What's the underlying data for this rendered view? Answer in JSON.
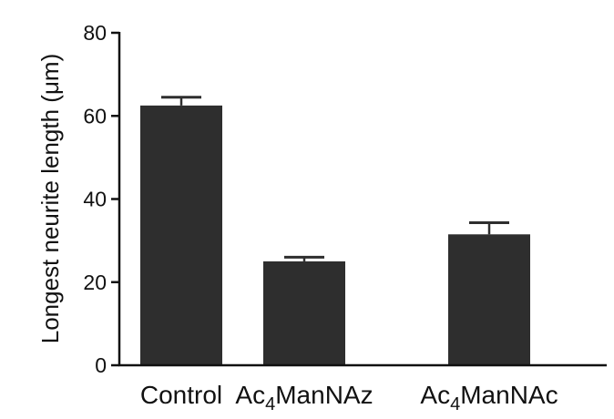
{
  "chart_data": {
    "type": "bar",
    "title": "",
    "xlabel": "",
    "ylabel": "Longest neurite length (μm)",
    "ylim": [
      0,
      80
    ],
    "yticks": [
      0,
      20,
      40,
      60,
      80
    ],
    "ytick_labels": [
      "0",
      "20",
      "40",
      "60",
      "80"
    ],
    "categories": [
      {
        "label": "Control",
        "base": "Control",
        "sub": "",
        "rest": ""
      },
      {
        "label": "Ac4ManNAz",
        "base": "Ac",
        "sub": "4",
        "rest": "ManNAz"
      },
      {
        "label": "Ac4ManNAc",
        "base": "Ac",
        "sub": "4",
        "rest": "ManNAc"
      }
    ],
    "values": [
      62.5,
      25.0,
      31.5
    ],
    "errors": [
      2.0,
      1.0,
      2.8
    ],
    "bar_color": "#2e2e2e",
    "axis_color": "#111111",
    "grid": false,
    "legend": "none"
  }
}
